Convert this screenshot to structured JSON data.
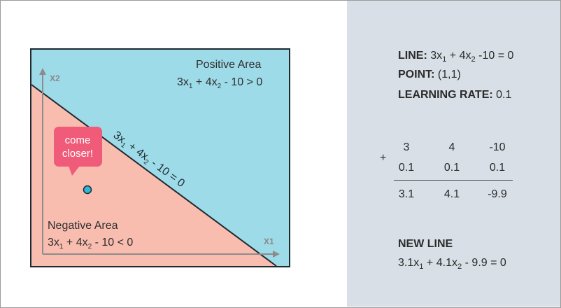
{
  "diagram": {
    "axis_x_label": "X1",
    "axis_y_label": "X2",
    "positive_area": {
      "title": "Positive Area",
      "eq_a": "3x",
      "eq_b": " + 4x",
      "eq_c": " - 10 > 0",
      "sub1": "1",
      "sub2": "2"
    },
    "negative_area": {
      "title": "Negative Area",
      "eq_a": "3x",
      "eq_b": " + 4x",
      "eq_c": " - 10 < 0",
      "sub1": "1",
      "sub2": "2"
    },
    "line_label": {
      "a": "3x",
      "b": " + 4x",
      "c": " - 10 = 0",
      "sub1": "1",
      "sub2": "2"
    },
    "speech_bubble": {
      "line1": "come",
      "line2": "closer!"
    },
    "colors": {
      "positive": "#9edbe9",
      "negative": "#f9bdb0",
      "bubble": "#ef5b79",
      "point": "#2fb6d8"
    }
  },
  "panel": {
    "line": {
      "label": "LINE:",
      "a": " 3x",
      "b": " + 4x",
      "c": " -10 = 0",
      "sub1": "1",
      "sub2": "2"
    },
    "point": {
      "label": "POINT:",
      "value": " (1,1)"
    },
    "learning_rate": {
      "label": "LEARNING RATE:",
      "value": " 0.1"
    },
    "calc": {
      "operator": "+",
      "row1": [
        "3",
        "4",
        "-10"
      ],
      "row2": [
        "0.1",
        "0.1",
        "0.1"
      ],
      "result": [
        "3.1",
        "4.1",
        "-9.9"
      ]
    },
    "new_line": {
      "label": "NEW LINE",
      "a": "3.1x",
      "b": " + 4.1x",
      "c": " - 9.9 = 0",
      "sub1": "1",
      "sub2": "2"
    }
  }
}
